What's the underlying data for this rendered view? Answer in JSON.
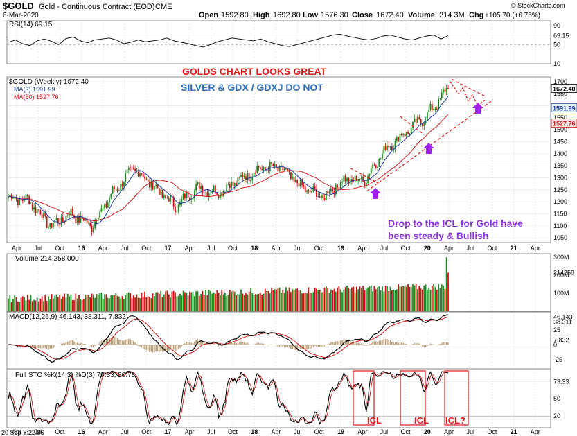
{
  "header": {
    "symbol": "$GOLD",
    "name": "Gold - Continuous Contract (EOD)",
    "exchange": "CME",
    "date": "6-Mar-2020",
    "open_label": "Open",
    "open": "1592.80",
    "high_label": "High",
    "high": "1692.80",
    "low_label": "Low",
    "low": "1576.30",
    "close_label": "Close",
    "close": "1672.40",
    "volume_label": "Volume",
    "volume": "214.3M",
    "chg_label": "Chg",
    "chg": "+105.70 (+6.75%)",
    "brand": "© StockCharts.com"
  },
  "rsi": {
    "legend": "RSI(14) 69.15",
    "axis_labels": [
      "90",
      "69.15",
      "50",
      "10"
    ],
    "values": [
      55,
      60,
      52,
      48,
      58,
      62,
      57,
      50,
      63,
      66,
      58,
      54,
      60,
      62,
      64,
      60,
      52,
      55,
      60,
      56,
      58,
      60,
      64,
      58,
      55,
      52,
      48,
      45,
      50,
      56,
      60,
      64,
      62,
      60,
      58,
      62,
      56,
      52,
      48,
      46,
      50,
      54,
      58,
      62,
      66,
      70,
      72,
      68,
      65,
      62,
      60,
      63,
      68,
      70,
      66,
      62,
      60,
      64,
      68,
      70,
      62,
      69
    ]
  },
  "price": {
    "legend_title": "$GOLD (Weekly) 1672.40",
    "legend_ma9": "MA(9) 1591.99",
    "legend_ma30": "MA(30) 1527.76",
    "axis_labels": [
      "1700",
      "1650",
      "1600",
      "1550",
      "1500",
      "1450",
      "1400",
      "1350",
      "1300",
      "1250",
      "1200",
      "1150",
      "1100",
      "1050"
    ],
    "last_label": "1672.40",
    "ma9_label": "1591.99",
    "ma30_label": "1527.76",
    "top_label": "1700",
    "annotation_main": "GOLDS CHART LOOKS GREAT",
    "annotation_sub": "SILVER & GDX / GDXJ DO NOT",
    "annotation_bottom_1": "Drop to the ICL for Gold have",
    "annotation_bottom_2": "been steady & Bullish"
  },
  "volume": {
    "legend": "Volume 214,258,000",
    "axis_labels": [
      "300M",
      "214258",
      "200M",
      "100M"
    ]
  },
  "macd": {
    "legend": "MACD(12,26,9) 46.143, 38.311, 7.832",
    "axis_labels": [
      "46.143",
      "38.311",
      "25",
      "7.832",
      "0",
      "-25"
    ]
  },
  "sto": {
    "legend": "Full STO %K(14,3) %D(3) 79.33, 80.78",
    "axis_labels": [
      "79.33",
      "50",
      "20"
    ],
    "icl_labels": [
      "ICL",
      "ICL",
      "ICL?"
    ]
  },
  "time_axis": [
    "Apr",
    "Jul",
    "Oct",
    "16",
    "Apr",
    "Jul",
    "Oct",
    "17",
    "Apr",
    "Jul",
    "Oct",
    "18",
    "Apr",
    "Jul",
    "Oct",
    "19",
    "Apr",
    "Jul",
    "Oct",
    "20",
    "Apr",
    "Jul",
    "Oct",
    "21",
    "Apr"
  ],
  "footer": "20 Sep Y:22.86",
  "colors": {
    "up": "#1f8a1f",
    "down": "#d01010",
    "ma9": "#1a3c9e",
    "ma30": "#d01818",
    "annotation_red": "#e01818",
    "annotation_blue": "#2e6fc2",
    "annotation_purple": "#8a2be2",
    "panel_border": "#888888",
    "grid": "#bbbbbb"
  },
  "chart_data": {
    "type": "candlestick",
    "title": "$GOLD (Weekly)",
    "x": [
      "2015-01",
      "2015-04",
      "2015-07",
      "2015-10",
      "2016-01",
      "2016-04",
      "2016-07",
      "2016-10",
      "2017-01",
      "2017-04",
      "2017-07",
      "2017-10",
      "2018-01",
      "2018-04",
      "2018-07",
      "2018-10",
      "2019-01",
      "2019-04",
      "2019-07",
      "2019-10",
      "2020-01",
      "2020-03"
    ],
    "close": [
      1220,
      1205,
      1100,
      1150,
      1100,
      1240,
      1340,
      1260,
      1180,
      1260,
      1240,
      1290,
      1340,
      1340,
      1260,
      1220,
      1290,
      1290,
      1420,
      1490,
      1560,
      1672.4
    ],
    "ma9_last": 1591.99,
    "ma30_last": 1527.76,
    "ylim": [
      1030,
      1720
    ]
  }
}
